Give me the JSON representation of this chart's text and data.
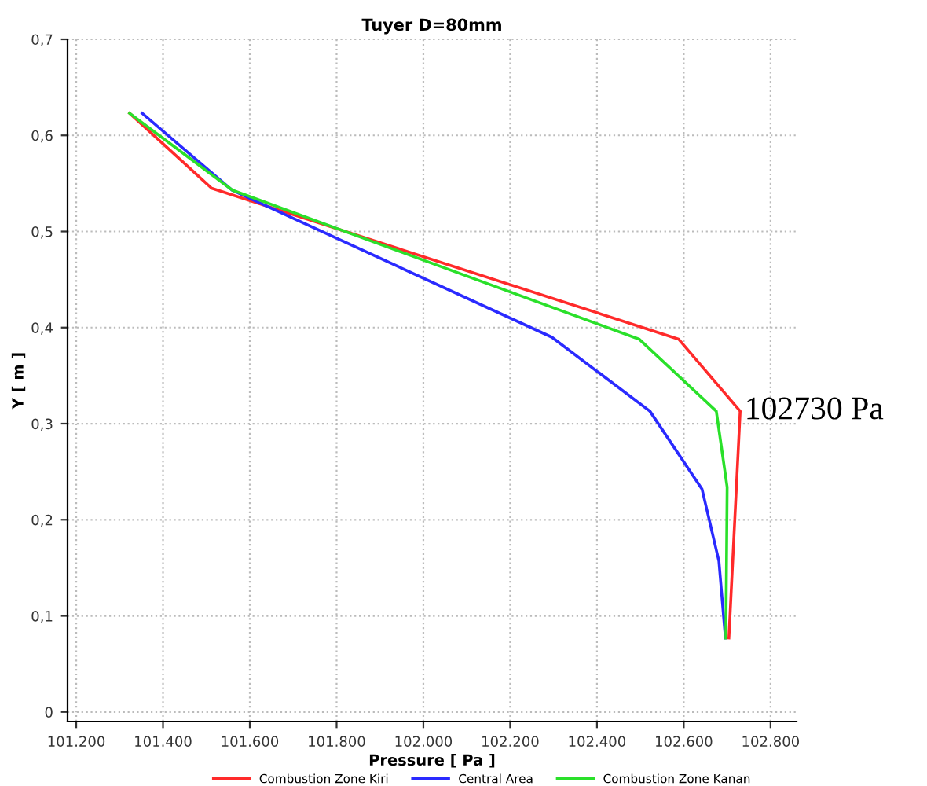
{
  "chart_data": {
    "type": "line",
    "title": "Tuyer D=80mm",
    "xlabel": "Pressure [ Pa ]",
    "ylabel": "Y [ m ]",
    "xlim": [
      101180,
      102860
    ],
    "ylim": [
      -0.01,
      0.7
    ],
    "xticks": [
      {
        "value": 101200,
        "label": "101.200"
      },
      {
        "value": 101400,
        "label": "101.400"
      },
      {
        "value": 101600,
        "label": "101.600"
      },
      {
        "value": 101800,
        "label": "101.800"
      },
      {
        "value": 102000,
        "label": "102.000"
      },
      {
        "value": 102200,
        "label": "102.200"
      },
      {
        "value": 102400,
        "label": "102.400"
      },
      {
        "value": 102600,
        "label": "102.600"
      },
      {
        "value": 102800,
        "label": "102.800"
      }
    ],
    "yticks": [
      0,
      {
        "value": 0.1,
        "label": "0,1"
      },
      {
        "value": 0.2,
        "label": "0,2"
      },
      {
        "value": 0.3,
        "label": "0,3"
      },
      {
        "value": 0.4,
        "label": "0,4"
      },
      {
        "value": 0.5,
        "label": "0,5"
      },
      {
        "value": 0.6,
        "label": "0,6"
      },
      {
        "value": 0.7,
        "label": "0,7"
      }
    ],
    "grid": true,
    "legend": "bottom",
    "marker": "none",
    "line_style": "solid",
    "annotations": [
      {
        "text": "102730 Pa",
        "x": 102730,
        "y": 0.313
      }
    ],
    "series": [
      {
        "name": "Combustion Zone Kiri",
        "color": "#ff2a2a",
        "x": [
          101323,
          101512,
          102588,
          102730,
          102704
        ],
        "values": [
          0.623,
          0.545,
          0.388,
          0.313,
          0.077
        ]
      },
      {
        "name": "Central Area",
        "color": "#2a2aff",
        "x": [
          101352,
          101559,
          102296,
          102522,
          102642,
          102681,
          102696
        ],
        "values": [
          0.623,
          0.543,
          0.39,
          0.313,
          0.232,
          0.157,
          0.077
        ]
      },
      {
        "name": "Combustion Zone Kanan",
        "color": "#2ae02a",
        "x": [
          101323,
          101560,
          102497,
          102675,
          102700,
          102697
        ],
        "values": [
          0.623,
          0.543,
          0.388,
          0.313,
          0.234,
          0.077
        ]
      }
    ]
  }
}
